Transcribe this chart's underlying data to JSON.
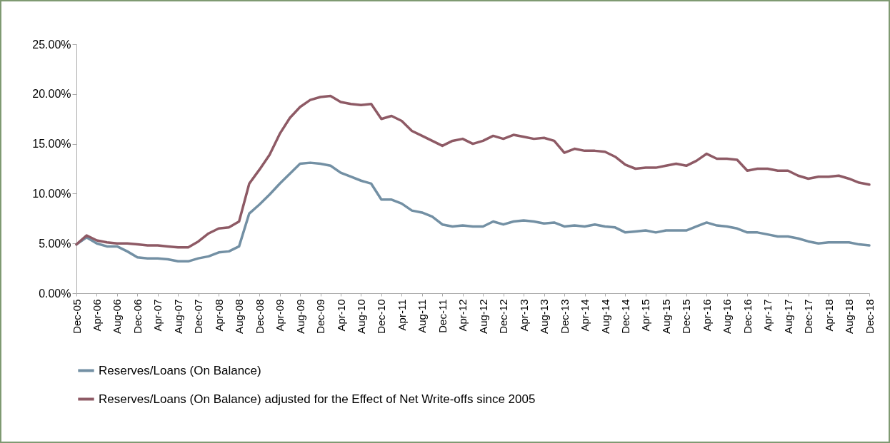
{
  "chart_data": {
    "type": "line",
    "categories": [
      "Dec-05",
      null,
      "Apr-06",
      null,
      "Aug-06",
      null,
      "Dec-06",
      null,
      "Apr-07",
      null,
      "Aug-07",
      null,
      "Dec-07",
      null,
      "Apr-08",
      null,
      "Aug-08",
      null,
      "Dec-08",
      null,
      "Apr-09",
      null,
      "Aug-09",
      null,
      "Dec-09",
      null,
      "Apr-10",
      null,
      "Aug-10",
      null,
      "Dec-10",
      null,
      "Apr-11",
      null,
      "Aug-11",
      null,
      "Dec-11",
      null,
      "Apr-12",
      null,
      "Aug-12",
      null,
      "Dec-12",
      null,
      "Apr-13",
      null,
      "Aug-13",
      null,
      "Dec-13",
      null,
      "Apr-14",
      null,
      "Aug-14",
      null,
      "Dec-14",
      null,
      "Apr-15",
      null,
      "Aug-15",
      null,
      "Dec-15",
      null,
      "Apr-16",
      null,
      "Aug-16",
      null,
      "Dec-16",
      null,
      "Apr-17",
      null,
      "Aug-17",
      null,
      "Dec-17",
      null,
      "Apr-18",
      null,
      "Aug-18",
      null,
      "Dec-18"
    ],
    "series": [
      {
        "name": "Reserves/Loans (On Balance)",
        "color": "#7390a4",
        "values": [
          4.9,
          5.6,
          5.0,
          4.7,
          4.7,
          4.2,
          3.6,
          3.5,
          3.5,
          3.4,
          3.2,
          3.2,
          3.5,
          3.7,
          4.1,
          4.2,
          4.7,
          8.0,
          8.9,
          9.9,
          11.0,
          12.0,
          13.0,
          13.1,
          13.0,
          12.8,
          12.1,
          11.7,
          11.3,
          11.0,
          9.4,
          9.4,
          9.0,
          8.3,
          8.1,
          7.7,
          6.9,
          6.7,
          6.8,
          6.7,
          6.7,
          7.2,
          6.9,
          7.2,
          7.3,
          7.2,
          7.0,
          7.1,
          6.7,
          6.8,
          6.7,
          6.9,
          6.7,
          6.6,
          6.1,
          6.2,
          6.3,
          6.1,
          6.3,
          6.3,
          6.3,
          6.7,
          7.1,
          6.8,
          6.7,
          6.5,
          6.1,
          6.1,
          5.9,
          5.7,
          5.7,
          5.5,
          5.2,
          5.0,
          5.1,
          5.1,
          5.1,
          4.9,
          4.8
        ]
      },
      {
        "name": "Reserves/Loans (On Balance) adjusted for the Effect of Net Write-offs since 2005",
        "color": "#8e5a65",
        "values": [
          4.9,
          5.8,
          5.3,
          5.1,
          5.0,
          5.0,
          4.9,
          4.8,
          4.8,
          4.7,
          4.6,
          4.6,
          5.2,
          6.0,
          6.5,
          6.6,
          7.2,
          11.0,
          12.4,
          13.9,
          16.0,
          17.6,
          18.7,
          19.4,
          19.7,
          19.8,
          19.2,
          19.0,
          18.9,
          19.0,
          17.5,
          17.8,
          17.3,
          16.3,
          15.8,
          15.3,
          14.8,
          15.3,
          15.5,
          15.0,
          15.3,
          15.8,
          15.5,
          15.9,
          15.7,
          15.5,
          15.6,
          15.3,
          14.1,
          14.5,
          14.3,
          14.3,
          14.2,
          13.7,
          12.9,
          12.5,
          12.6,
          12.6,
          12.8,
          13.0,
          12.8,
          13.3,
          14.0,
          13.5,
          13.5,
          13.4,
          12.3,
          12.5,
          12.5,
          12.3,
          12.3,
          11.8,
          11.5,
          11.7,
          11.7,
          11.8,
          11.5,
          11.1,
          10.9
        ]
      }
    ],
    "ylim": [
      0,
      25
    ],
    "yticks": [
      {
        "value": 0,
        "label": "0.00%"
      },
      {
        "value": 5,
        "label": "5.00%"
      },
      {
        "value": 10,
        "label": "10.00%"
      },
      {
        "value": 15,
        "label": "15.00%"
      },
      {
        "value": 20,
        "label": "20.00%"
      },
      {
        "value": 25,
        "label": "25.00%"
      }
    ],
    "legend": "bottom"
  }
}
